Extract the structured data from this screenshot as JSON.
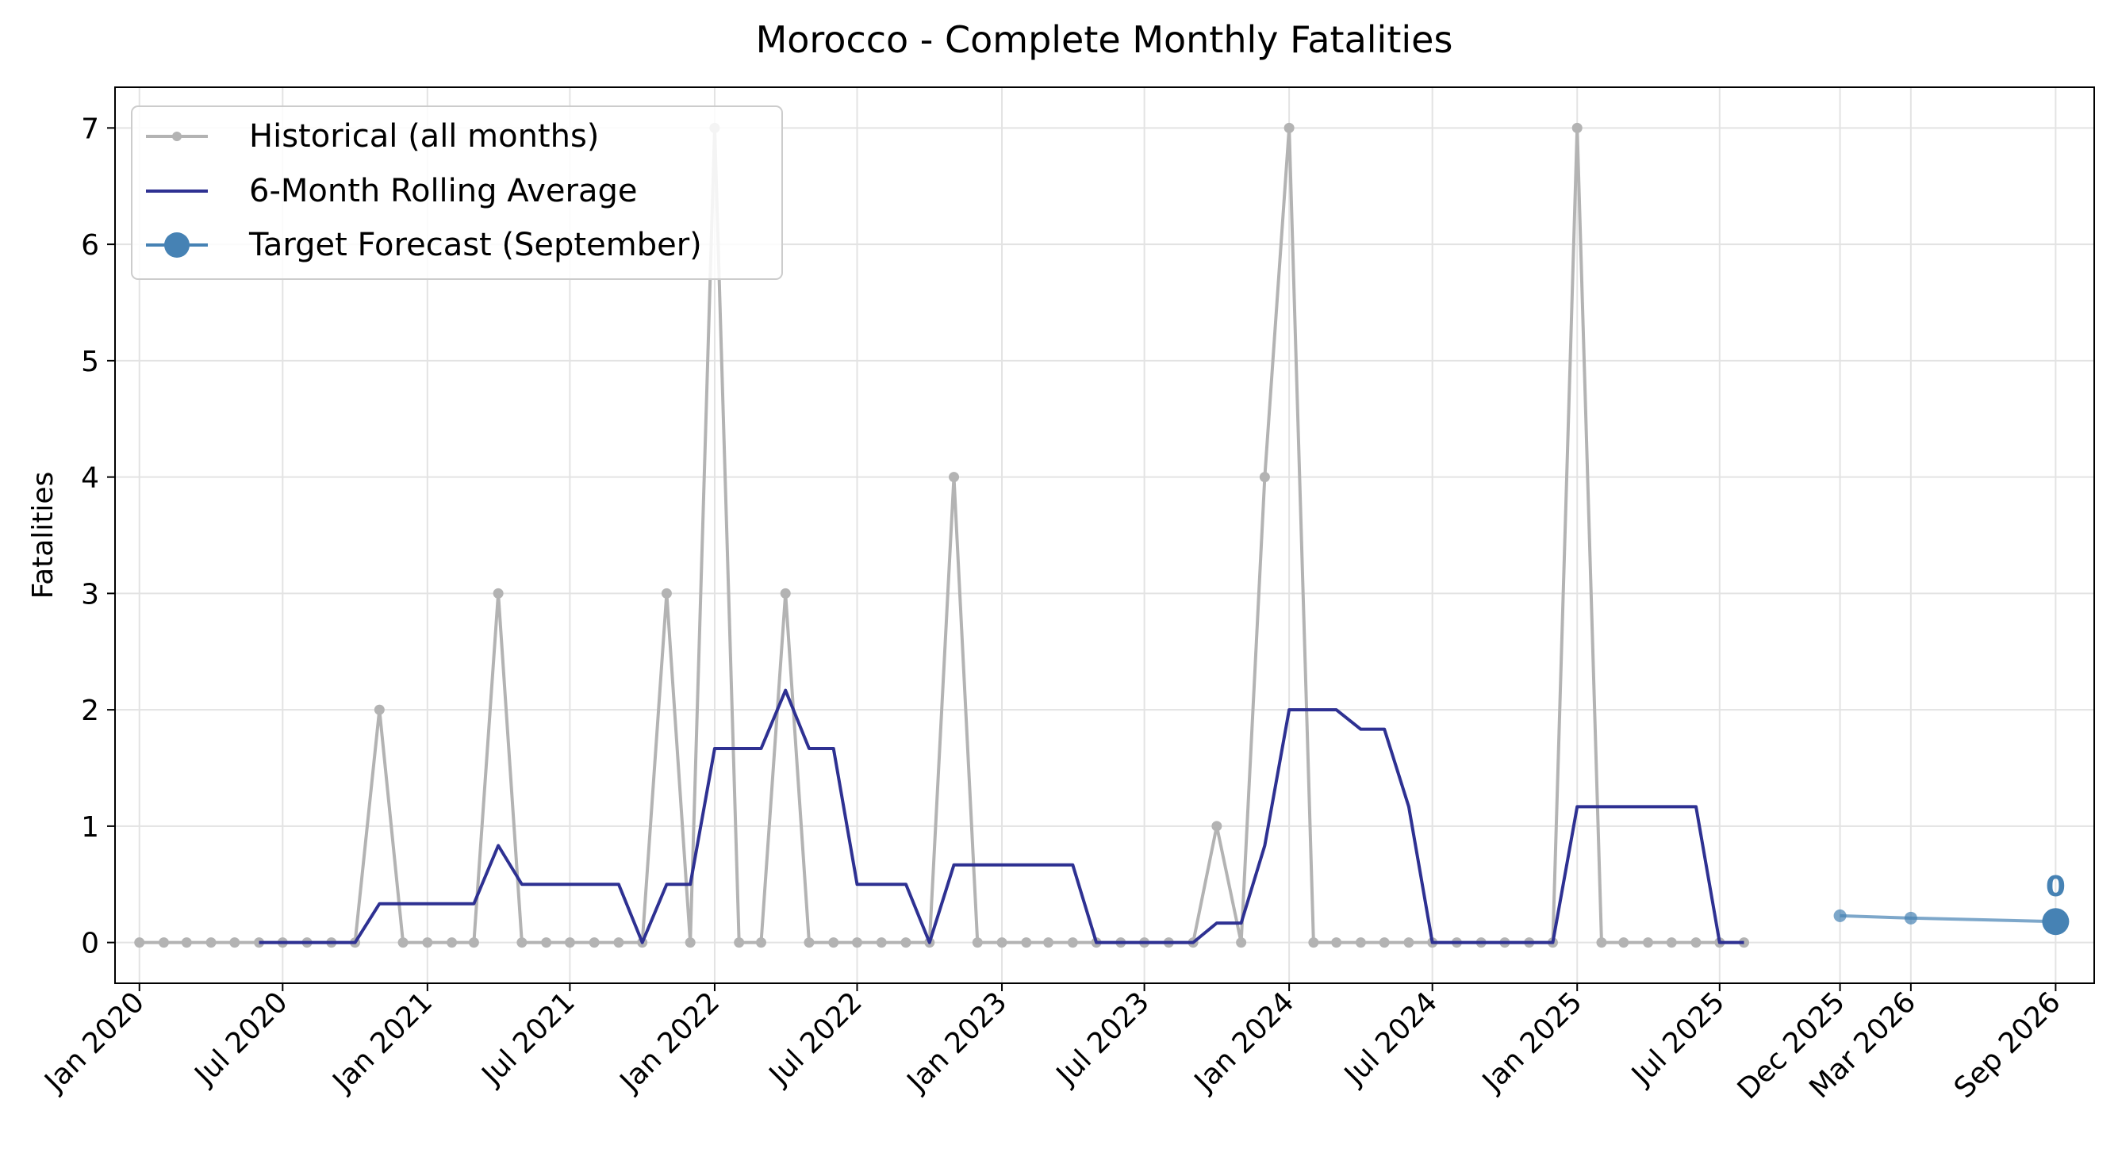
{
  "chart_data": {
    "type": "line",
    "title": "Morocco - Complete Monthly Fatalities",
    "xlabel": "",
    "ylabel": "Fatalities",
    "ylim": [
      -0.35,
      7.35
    ],
    "xlim": [
      "2019-12-01",
      "2026-10-20"
    ],
    "grid": true,
    "legend_placement": "top-left",
    "y_ticks": [
      0,
      1,
      2,
      3,
      4,
      5,
      6,
      7
    ],
    "x_ticks": [
      {
        "date": "2020-01-01",
        "label": "Jan 2020"
      },
      {
        "date": "2020-07-01",
        "label": "Jul 2020"
      },
      {
        "date": "2021-01-01",
        "label": "Jan 2021"
      },
      {
        "date": "2021-07-01",
        "label": "Jul 2021"
      },
      {
        "date": "2022-01-01",
        "label": "Jan 2022"
      },
      {
        "date": "2022-07-01",
        "label": "Jul 2022"
      },
      {
        "date": "2023-01-01",
        "label": "Jan 2023"
      },
      {
        "date": "2023-07-01",
        "label": "Jul 2023"
      },
      {
        "date": "2024-01-01",
        "label": "Jan 2024"
      },
      {
        "date": "2024-07-01",
        "label": "Jul 2024"
      },
      {
        "date": "2025-01-01",
        "label": "Jan 2025"
      },
      {
        "date": "2025-07-01",
        "label": "Jul 2025"
      },
      {
        "date": "2025-12-01",
        "label": "Dec 2025"
      },
      {
        "date": "2026-03-01",
        "label": "Mar 2026"
      },
      {
        "date": "2026-09-01",
        "label": "Sep 2026"
      }
    ],
    "series": [
      {
        "name": "Historical (all months)",
        "color": "#b3b3b3",
        "start": "2020-01-01",
        "values": [
          0,
          0,
          0,
          0,
          0,
          0,
          0,
          0,
          0,
          0,
          2,
          0,
          0,
          0,
          0,
          3,
          0,
          0,
          0,
          0,
          0,
          0,
          3,
          0,
          7,
          0,
          0,
          3,
          0,
          0,
          0,
          0,
          0,
          0,
          4,
          0,
          0,
          0,
          0,
          0,
          0,
          0,
          0,
          0,
          0,
          1,
          0,
          4,
          7,
          0,
          0,
          0,
          0,
          0,
          0,
          0,
          0,
          0,
          0,
          0,
          7,
          0,
          0,
          0,
          0,
          0,
          0,
          0
        ]
      },
      {
        "name": "6-Month Rolling Average",
        "color": "#2e3192",
        "start": "2020-06-01",
        "values": [
          0,
          0,
          0,
          0,
          0,
          0.333,
          0.333,
          0.333,
          0.333,
          0.333,
          0.833,
          0.5,
          0.5,
          0.5,
          0.5,
          0.5,
          0,
          0.5,
          0.5,
          1.667,
          1.667,
          1.667,
          2.167,
          1.667,
          1.667,
          0.5,
          0.5,
          0.5,
          0,
          0.667,
          0.667,
          0.667,
          0.667,
          0.667,
          0.667,
          0,
          0,
          0,
          0,
          0,
          0.167,
          0.167,
          0.833,
          2,
          2,
          2,
          1.833,
          1.833,
          1.167,
          0,
          0,
          0,
          0,
          0,
          0,
          1.167,
          1.167,
          1.167,
          1.167,
          1.167,
          1.167,
          0,
          0
        ]
      },
      {
        "name": "Target Forecast (September)",
        "color": "#4682b4",
        "dates": [
          "2025-12-01",
          "2026-03-01",
          "2026-09-01"
        ],
        "values": [
          0.23,
          0.21,
          0.18
        ],
        "annotation": "0"
      }
    ]
  }
}
